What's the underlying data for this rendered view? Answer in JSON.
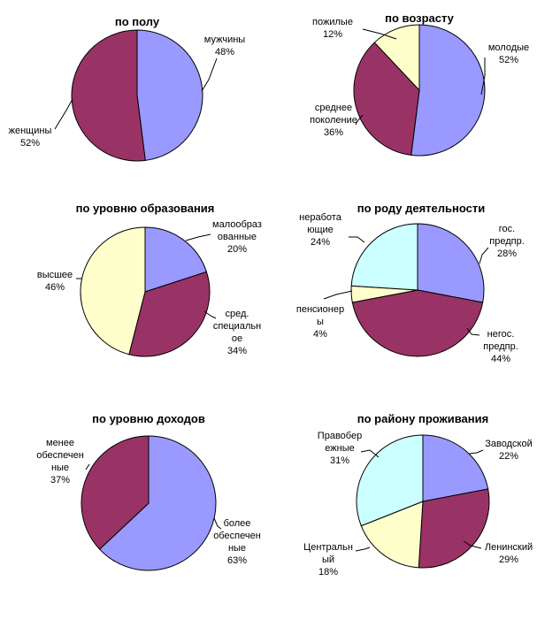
{
  "colors": {
    "blue": "#9999ff",
    "maroon": "#993366",
    "yellow": "#ffffcc",
    "cyan": "#ccffff"
  },
  "chart_data": [
    {
      "type": "pie",
      "title": "по полу",
      "slices": [
        {
          "label": [
            "мужчины"
          ],
          "pct": "48%",
          "value": 48,
          "color": "blue"
        },
        {
          "label": [
            "женщины"
          ],
          "pct": "52%",
          "value": 52,
          "color": "maroon"
        }
      ]
    },
    {
      "type": "pie",
      "title": "по возрасту",
      "slices": [
        {
          "label": [
            "молодые"
          ],
          "pct": "52%",
          "value": 52,
          "color": "blue"
        },
        {
          "label": [
            "среднее",
            "поколение"
          ],
          "pct": "36%",
          "value": 36,
          "color": "maroon"
        },
        {
          "label": [
            "пожилые"
          ],
          "pct": "12%",
          "value": 12,
          "color": "yellow"
        }
      ]
    },
    {
      "type": "pie",
      "title": "по уровню образования",
      "slices": [
        {
          "label": [
            "малообраз",
            "ованные"
          ],
          "pct": "20%",
          "value": 20,
          "color": "blue"
        },
        {
          "label": [
            "сред.",
            "специальн",
            "ое"
          ],
          "pct": "34%",
          "value": 34,
          "color": "maroon"
        },
        {
          "label": [
            "высшее"
          ],
          "pct": "46%",
          "value": 46,
          "color": "yellow"
        }
      ]
    },
    {
      "type": "pie",
      "title": "по роду деятельности",
      "slices": [
        {
          "label": [
            "гос.",
            "предпр."
          ],
          "pct": "28%",
          "value": 28,
          "color": "blue"
        },
        {
          "label": [
            "негос.",
            "предпр."
          ],
          "pct": "44%",
          "value": 44,
          "color": "maroon"
        },
        {
          "label": [
            "пенсионер",
            "ы"
          ],
          "pct": "4%",
          "value": 4,
          "color": "yellow"
        },
        {
          "label": [
            "неработа",
            "ющие"
          ],
          "pct": "24%",
          "value": 24,
          "color": "cyan"
        }
      ]
    },
    {
      "type": "pie",
      "title": "по уровню доходов",
      "slices": [
        {
          "label": [
            "более",
            "обеспечен",
            "ные"
          ],
          "pct": "63%",
          "value": 63,
          "color": "blue"
        },
        {
          "label": [
            "менее",
            "обеспечен",
            "ные"
          ],
          "pct": "37%",
          "value": 37,
          "color": "maroon"
        }
      ]
    },
    {
      "type": "pie",
      "title": "по району проживания",
      "slices": [
        {
          "label": [
            "Заводской"
          ],
          "pct": "22%",
          "value": 22,
          "color": "blue"
        },
        {
          "label": [
            "Ленинский"
          ],
          "pct": "29%",
          "value": 29,
          "color": "maroon"
        },
        {
          "label": [
            "Центральн",
            "ый"
          ],
          "pct": "18%",
          "value": 18,
          "color": "yellow"
        },
        {
          "label": [
            "Правобер",
            "ежные"
          ],
          "pct": "31%",
          "value": 31,
          "color": "cyan"
        }
      ]
    }
  ]
}
